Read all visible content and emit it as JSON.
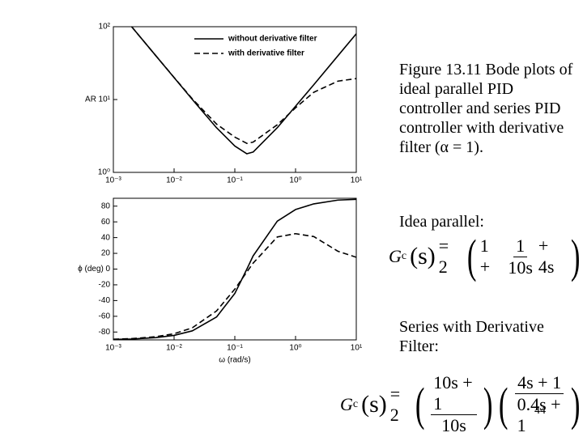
{
  "chart_data": [
    {
      "type": "line",
      "x_scale": "log",
      "y_scale": "log",
      "ylabel": "AR",
      "legend": "upper right",
      "x": [
        0.002,
        0.005,
        0.01,
        0.02,
        0.05,
        0.1,
        0.158,
        0.2,
        0.5,
        1,
        2,
        5,
        10
      ],
      "xlim": [
        0.001,
        10
      ],
      "ylim": [
        1,
        100
      ],
      "xticks": [
        {
          "value": 0.001,
          "label": "10⁻³"
        },
        {
          "value": 0.01,
          "label": "10⁻²"
        },
        {
          "value": 0.1,
          "label": "10⁻¹"
        },
        {
          "value": 1,
          "label": "10⁰"
        },
        {
          "value": 10,
          "label": "10¹"
        }
      ],
      "yticks": [
        {
          "value": 1,
          "label": "10⁰"
        },
        {
          "value": 10,
          "label": "10¹"
        },
        {
          "value": 100,
          "label": "10²"
        }
      ],
      "series": [
        {
          "name": "without derivative filter",
          "color": "#000000",
          "linestyle": "solid",
          "values": [
            100,
            40,
            20,
            10,
            4.1,
            2.3,
            1.8,
            1.9,
            4.1,
            8.1,
            16,
            40,
            80
          ]
        },
        {
          "name": "with derivative filter",
          "color": "#000000",
          "linestyle": "dashed",
          "values": [
            100,
            40,
            20.1,
            10.2,
            4.6,
            3.05,
            2.5,
            2.6,
            4.5,
            7.7,
            12.6,
            17.9,
            19.4
          ]
        }
      ]
    },
    {
      "type": "line",
      "x_scale": "log",
      "y_scale": "linear",
      "ylabel": "ϕ (deg)",
      "xlabel": "ω (rad/s)",
      "x": [
        0.001,
        0.002,
        0.005,
        0.01,
        0.02,
        0.05,
        0.1,
        0.158,
        0.2,
        0.5,
        1,
        2,
        5,
        10
      ],
      "xlim": [
        0.001,
        10
      ],
      "ylim": [
        -90,
        90
      ],
      "xticks": [
        {
          "value": 0.001,
          "label": "10⁻³"
        },
        {
          "value": 0.01,
          "label": "10⁻²"
        },
        {
          "value": 0.1,
          "label": "10⁻¹"
        },
        {
          "value": 1,
          "label": "10⁰"
        },
        {
          "value": 10,
          "label": "10¹"
        }
      ],
      "yticks": [
        -80,
        -60,
        -40,
        -20,
        0,
        20,
        40,
        60,
        80
      ],
      "series": [
        {
          "name": "without derivative filter",
          "color": "#000000",
          "linestyle": "solid",
          "values": [
            -89.4,
            -88.9,
            -87.1,
            -84.3,
            -78.5,
            -60.9,
            -31,
            0,
            16.7,
            60.9,
            75.7,
            82.9,
            87.7,
            88.6
          ]
        },
        {
          "name": "with derivative filter",
          "color": "#000000",
          "linestyle": "dashed",
          "values": [
            -89.2,
            -88.4,
            -86,
            -82.2,
            -74.6,
            -53.2,
            -25.5,
            -3.6,
            7.5,
            40.8,
            45,
            41.3,
            22.6,
            15
          ]
        }
      ]
    }
  ],
  "slide": {
    "caption": "Figure 13.11 Bode plots of ideal parallel PID controller and series PID controller with derivative filter (α = 1).",
    "ideal_label": "Idea parallel:",
    "series_label": "Series with Derivative Filter:",
    "page_number": "44",
    "eq1": {
      "lhs": "G",
      "sub": "c",
      "arg": "(s)",
      "eq": "= 2",
      "open": "(",
      "t1": "1 +",
      "num": "1",
      "den": "10s",
      "t3": "+ 4s",
      "close": ")"
    },
    "eq2": {
      "lhs": "G",
      "sub": "c",
      "arg": "(s)",
      "eq": "= 2",
      "open1": "(",
      "num1": "10s + 1",
      "den1": "10s",
      "close1": ")",
      "open2": "(",
      "num2": "4s + 1",
      "den2": "0.4s + 1",
      "close2": ")"
    }
  }
}
